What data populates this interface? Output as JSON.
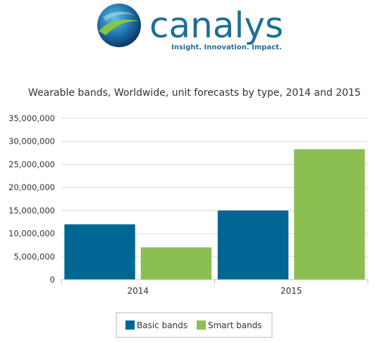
{
  "brand": {
    "name": "canalys",
    "tagline": "Insight. Innovation. Impact.",
    "colors": {
      "wordmark": "#1d6e96",
      "tagline": "#1d6e96",
      "globe_dark": "#0c3f73",
      "globe_light": "#3aa0c9",
      "swoosh": "#8cc63f"
    }
  },
  "chart_data": {
    "type": "bar",
    "title": "Wearable bands, Worldwide, unit forecasts by type, 2014 and 2015",
    "xlabel": "",
    "ylabel": "",
    "categories": [
      "2014",
      "2015"
    ],
    "series": [
      {
        "name": "Basic bands",
        "color": "#006794",
        "values": [
          12000000,
          15000000
        ]
      },
      {
        "name": "Smart bands",
        "color": "#8cbf52",
        "values": [
          7000000,
          28300000
        ]
      }
    ],
    "ylim": [
      0,
      35000000
    ],
    "yticks": [
      0,
      5000000,
      10000000,
      15000000,
      20000000,
      25000000,
      30000000,
      35000000
    ],
    "ytick_labels": [
      "0",
      "5,000,000",
      "10,000,000",
      "15,000,000",
      "20,000,000",
      "25,000,000",
      "30,000,000",
      "35,000,000"
    ],
    "grid": true,
    "legend_position": "bottom-center"
  }
}
